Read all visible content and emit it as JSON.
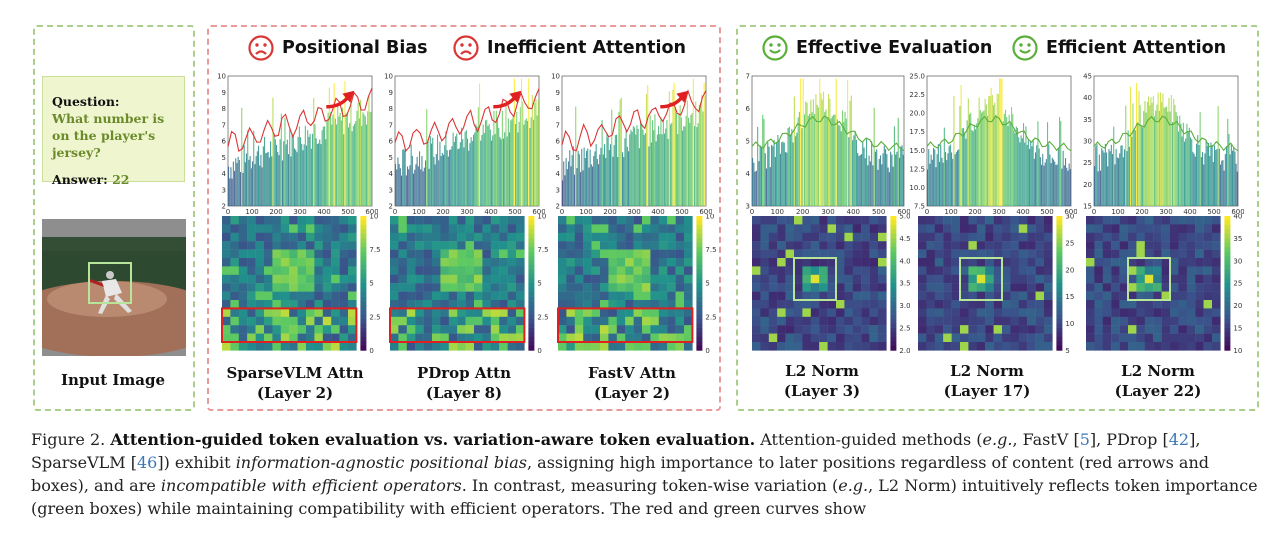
{
  "left_panel": {
    "question_label": "Question:",
    "question_text": "What number is on the player's jersey?",
    "answer_label": "Answer:",
    "answer_value": "22",
    "input_caption": "Input Image"
  },
  "mid_panel": {
    "header_1": "Positional Bias",
    "header_2": "Inefficient Attention",
    "captions": [
      {
        "line1": "SparseVLM Attn",
        "line2": "(Layer 2)"
      },
      {
        "line1": "PDrop Attn",
        "line2": "(Layer 8)"
      },
      {
        "line1": "FastV Attn",
        "line2": "(Layer 2)"
      }
    ],
    "colorbar_ticks": [
      "10",
      "7.5",
      "5",
      "2.5",
      "0"
    ]
  },
  "right_panel": {
    "header_1": "Effective Evaluation",
    "header_2": "Efficient Attention",
    "captions": [
      {
        "line1": "L2 Norm",
        "line2": "(Layer 3)"
      },
      {
        "line1": "L2 Norm",
        "line2": "(Layer 17)"
      },
      {
        "line1": "L2 Norm",
        "line2": "(Layer 22)"
      }
    ]
  },
  "chart_data": [
    {
      "type": "bar",
      "title": "SparseVLM Attn (Layer 2)",
      "xlabel": "",
      "ylabel": "",
      "x_ticks": [
        "0",
        "100",
        "200",
        "300",
        "400",
        "500",
        "600"
      ],
      "y_ticks": [
        "2",
        "3",
        "4",
        "5",
        "6",
        "7",
        "8",
        "9",
        "10"
      ],
      "ylim": [
        2,
        10
      ],
      "xlim": [
        0,
        600
      ]
    },
    {
      "type": "bar",
      "title": "PDrop Attn (Layer 8)",
      "x_ticks": [
        "0",
        "100",
        "200",
        "300",
        "400",
        "500",
        "600"
      ],
      "y_ticks": [
        "2",
        "3",
        "4",
        "5",
        "6",
        "7",
        "8",
        "9",
        "10"
      ],
      "ylim": [
        2,
        10
      ],
      "xlim": [
        0,
        600
      ]
    },
    {
      "type": "bar",
      "title": "FastV Attn (Layer 2)",
      "x_ticks": [
        "0",
        "100",
        "200",
        "300",
        "400",
        "500",
        "600"
      ],
      "y_ticks": [
        "2",
        "3",
        "4",
        "5",
        "6",
        "7",
        "8",
        "9",
        "10"
      ],
      "ylim": [
        2,
        10
      ],
      "xlim": [
        0,
        600
      ]
    },
    {
      "type": "bar",
      "title": "L2 Norm (Layer 3)",
      "x_ticks": [
        "0",
        "100",
        "200",
        "300",
        "400",
        "500",
        "600"
      ],
      "y_ticks": [
        "3",
        "4",
        "5",
        "6",
        "7"
      ],
      "ylim": [
        3,
        7
      ],
      "xlim": [
        0,
        600
      ]
    },
    {
      "type": "bar",
      "title": "L2 Norm (Layer 17)",
      "x_ticks": [
        "0",
        "100",
        "200",
        "300",
        "400",
        "500",
        "600"
      ],
      "y_ticks": [
        "7.5",
        "10.0",
        "12.5",
        "15.0",
        "17.5",
        "20.0",
        "22.5",
        "25.0"
      ],
      "ylim": [
        7.5,
        25
      ],
      "xlim": [
        0,
        600
      ]
    },
    {
      "type": "bar",
      "title": "L2 Norm (Layer 22)",
      "x_ticks": [
        "0",
        "100",
        "200",
        "300",
        "400",
        "500",
        "600"
      ],
      "y_ticks": [
        "15",
        "20",
        "25",
        "30",
        "35",
        "40",
        "45"
      ],
      "ylim": [
        15,
        45
      ],
      "xlim": [
        0,
        600
      ]
    }
  ],
  "heatmap_colorbars": [
    [
      "10",
      "7.5",
      "5",
      "2.5",
      "0"
    ],
    [
      "10",
      "7.5",
      "5",
      "2.5",
      "0"
    ],
    [
      "10",
      "7.5",
      "5",
      "2.5",
      "0"
    ],
    [
      "5.0",
      "4.5",
      "4.0",
      "3.5",
      "3.0",
      "2.5",
      "2.0"
    ],
    [
      "30",
      "25",
      "20",
      "15",
      "10",
      "5"
    ],
    [
      "40",
      "35",
      "30",
      "25",
      "20",
      "15",
      "10"
    ]
  ],
  "caption": {
    "prefix": "Figure 2. ",
    "bold": "Attention-guided token evaluation vs.  variation-aware token evaluation.",
    "t1": " Attention-guided methods (",
    "eg1": "e.g.",
    "t2": ", FastV [",
    "r1": "5",
    "t3": "],",
    "t4": "PDrop [",
    "r2": "42",
    "t5": "], SparseVLM [",
    "r3": "46",
    "t6": "]) exhibit ",
    "it1": "information-agnostic positional bias",
    "t7": ", assigning high importance to later positions regardless of content (red arrows and boxes), and are ",
    "it2": "incompatible with efficient operators",
    "t8": ". In contrast, measuring token-wise variation (",
    "eg2": "e.g.",
    "t9": ", L2 Norm) intuitively reflects token importance (green boxes) while maintaining compatibility with efficient operators. The red and green curves show"
  },
  "colors": {
    "red": "#d93636",
    "green": "#5aaf3a",
    "viridis_dark": "#3b1f5b",
    "viridis_yellow": "#e7e419"
  }
}
